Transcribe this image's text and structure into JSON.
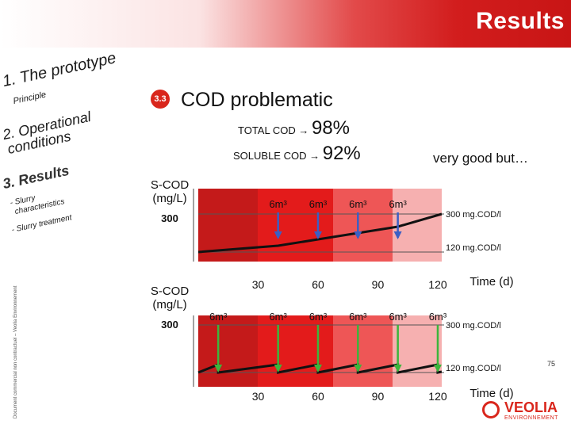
{
  "header": {
    "title": "Results"
  },
  "sidebar": {
    "items": [
      {
        "label": "1. The prototype"
      },
      {
        "label": "Principle"
      },
      {
        "label": "2. Operational"
      },
      {
        "label": "conditions"
      },
      {
        "label": "3. Results"
      },
      {
        "label": "- Slurry"
      },
      {
        "label": "characteristics"
      },
      {
        "label": "- Slurry treatment"
      }
    ]
  },
  "section": {
    "number": "3.3",
    "title": "COD problematic"
  },
  "metrics": {
    "total_label": "TOTAL COD",
    "total_value": "98%",
    "soluble_label": "SOLUBLE COD",
    "soluble_value": "92%",
    "arrow": "→",
    "remark": "very good but…"
  },
  "chart_data": [
    {
      "type": "line",
      "ylabel": "S-COD (mg/L)",
      "ytick": "300",
      "xlabel": "Time (d)",
      "x_ticks": [
        "30",
        "60",
        "90",
        "120"
      ],
      "addition_label": "6m³",
      "additions": 4,
      "additions_at_days": [
        40,
        60,
        80,
        100
      ],
      "upper_line_label": "300 mg.COD/l",
      "lower_line_label": "120 mg.COD/l",
      "series": [
        {
          "x": [
            0,
            40,
            60,
            80,
            100,
            122
          ],
          "y": [
            120,
            150,
            180,
            210,
            240,
            300
          ]
        }
      ],
      "arrow_color": "#3b5fc4"
    },
    {
      "type": "line",
      "ylabel": "S-COD (mg/L)",
      "ytick": "300",
      "xlabel": "Time (d)",
      "x_ticks": [
        "30",
        "60",
        "90",
        "120"
      ],
      "addition_label": "6m³",
      "additions": 6,
      "additions_at_days": [
        10,
        40,
        60,
        80,
        100,
        120
      ],
      "upper_line_label": "300 mg.COD/l",
      "lower_line_label": "120 mg.COD/l",
      "series": [
        {
          "x": [
            0,
            10,
            10,
            40,
            40,
            60,
            60,
            80,
            80,
            100,
            100,
            120,
            120,
            122
          ],
          "y": [
            120,
            150,
            120,
            150,
            120,
            150,
            120,
            150,
            120,
            150,
            120,
            150,
            120,
            123
          ]
        }
      ],
      "arrow_color": "#3cb53c"
    }
  ],
  "footer": {
    "page_number": "75",
    "side_note": "Document commercial non contractuel – Veolia Environnement",
    "logo_word": "VEOLIA",
    "logo_sub": "ENVIRONNEMENT"
  }
}
